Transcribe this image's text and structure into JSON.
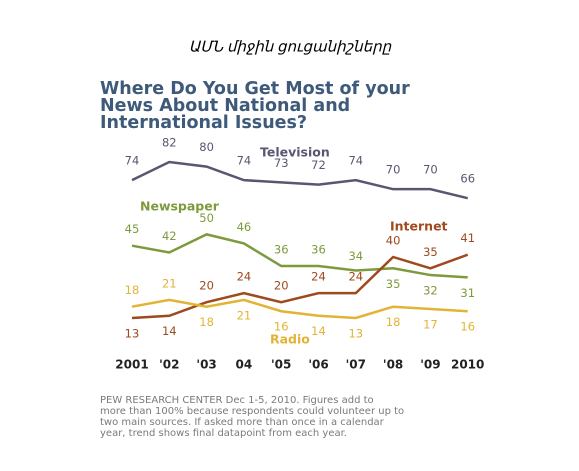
{
  "caption": "ԱՄՆ միջին ցուցանիշները",
  "chart_data": {
    "type": "line",
    "title": [
      "Where Do You Get Most of your",
      "News About National and",
      "International Issues?"
    ],
    "categories": [
      "2001",
      "'02",
      "'03",
      "04",
      "'05",
      "'06",
      "'07",
      "'08",
      "'09",
      "2010"
    ],
    "series": [
      {
        "name": "Television",
        "color": "#5b5670",
        "values": [
          74,
          82,
          80,
          74,
          73,
          72,
          74,
          70,
          70,
          66
        ]
      },
      {
        "name": "Newspaper",
        "color": "#7d9a3c",
        "values": [
          45,
          42,
          50,
          46,
          36,
          36,
          34,
          35,
          32,
          31
        ]
      },
      {
        "name": "Internet",
        "color": "#9e4a1e",
        "values": [
          13,
          14,
          20,
          24,
          20,
          24,
          24,
          40,
          35,
          41
        ]
      },
      {
        "name": "Radio",
        "color": "#e2b335",
        "values": [
          18,
          21,
          18,
          21,
          16,
          14,
          13,
          18,
          17,
          16
        ]
      }
    ],
    "note": [
      "PEW RESEARCH  CENTER Dec 1-5, 2010. Figures add to",
      "more than 100% because respondents could volunteer up to",
      "two main sources. If  asked more than once in a calendar",
      "year, trend shows final datapoint from each year."
    ]
  }
}
